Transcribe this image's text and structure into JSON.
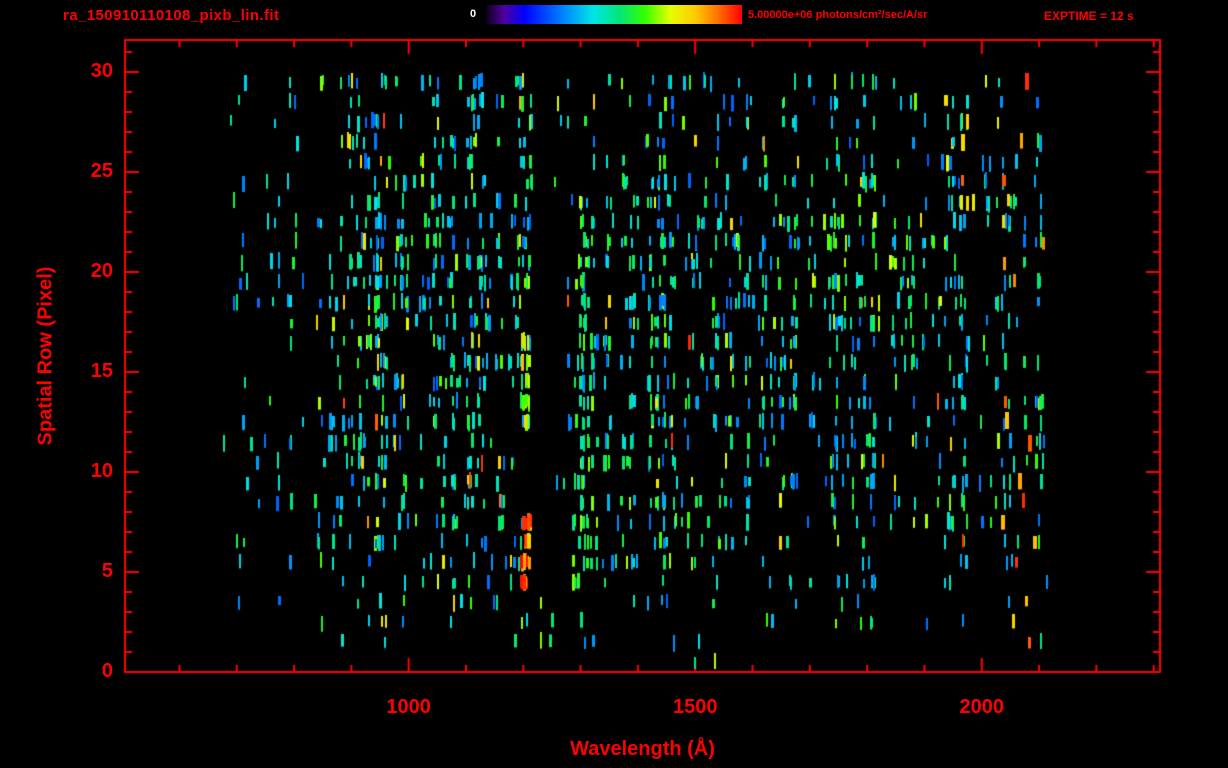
{
  "colors": {
    "background": "#000000",
    "axis": "#ff0000",
    "labels": "#ff0000",
    "colorbar_min_label": "#ffffff"
  },
  "chart_data": {
    "type": "heatmap",
    "title": "ra_150910110108_pixb_lin.fit",
    "xlabel": "Wavelength (Å)",
    "ylabel": "Spatial Row (Pixel)",
    "exptime_label": "EXPTIME = 12 s",
    "exptime_seconds": 12,
    "x_tick_labels": [
      "1000",
      "1500",
      "2000"
    ],
    "x_tick_values": [
      1000,
      1500,
      2000
    ],
    "x_minor_step": 100,
    "x_major_step": 500,
    "x_range": [
      505,
      2311
    ],
    "y_tick_labels": [
      "0",
      "5",
      "10",
      "15",
      "20",
      "25",
      "30"
    ],
    "y_tick_values": [
      0,
      5,
      10,
      15,
      20,
      25,
      30
    ],
    "y_minor_step": 1,
    "y_major_step": 5,
    "y_range": [
      0,
      31.6
    ],
    "grid": false,
    "colorbar": {
      "min": 0,
      "max": 5000000,
      "min_label": "0",
      "max_label": "5.00000e+06 photons/cm²/sec/A/sr",
      "units": "photons/cm²/sec/A/sr",
      "position": "top"
    },
    "colormap_stops": [
      [
        0.0,
        "#0a0014"
      ],
      [
        0.07,
        "#5000a0"
      ],
      [
        0.15,
        "#0000ff"
      ],
      [
        0.3,
        "#0082ff"
      ],
      [
        0.42,
        "#00e6e6"
      ],
      [
        0.52,
        "#00e67a"
      ],
      [
        0.62,
        "#32ff00"
      ],
      [
        0.72,
        "#e6ff00"
      ],
      [
        0.82,
        "#ffc800"
      ],
      [
        0.9,
        "#ff7800"
      ],
      [
        1.0,
        "#ff0000"
      ]
    ],
    "event_field": {
      "description": "photon-event dashes per spatial row; intensities 0-1 map through colormap to 0 - 5e6 photons/cm²/sec/A/sr",
      "seed": 20150910,
      "rows": 30,
      "wavelength_range": [
        675,
        2120
      ],
      "line_count": 150,
      "line_pick_prob": 0.78,
      "row_event_counts": [
        2,
        12,
        18,
        20,
        30,
        40,
        45,
        50,
        55,
        60,
        60,
        65,
        65,
        60,
        65,
        70,
        65,
        70,
        75,
        80,
        75,
        80,
        70,
        60,
        55,
        45,
        40,
        40,
        45,
        50
      ],
      "sparse_region_left_max_wavelength": 850,
      "sparse_region_left_keep_prob": 0.55,
      "sparse_region_right_min_wavelength": 2060,
      "sparse_region_right_keep_prob": 0.5,
      "features": [
        {
          "name": "lyman-alpha-emission-lower",
          "wavelength": [
            1196,
            1212
          ],
          "rows": [
            4,
            7
          ],
          "intensity": [
            0.78,
            1.0
          ],
          "extra_events_per_row": 7
        },
        {
          "name": "lyman-alpha-emission-upper",
          "wavelength": [
            1196,
            1212
          ],
          "rows": [
            12,
            16
          ],
          "intensity": [
            0.58,
            0.85
          ],
          "extra_events_per_row": 4
        },
        {
          "name": "geocoronal-gap-lower",
          "wavelength": [
            1190,
            1252
          ],
          "rows": [
            8,
            11
          ],
          "type": "exclusion"
        },
        {
          "name": "geocoronal-gap-upper",
          "wavelength": [
            1213,
            1252
          ],
          "rows": [
            12,
            23
          ],
          "type": "exclusion"
        },
        {
          "name": "oi-1304-column",
          "wavelength": [
            1288,
            1322
          ],
          "rows": [
            4,
            22
          ],
          "intensity": [
            0.45,
            0.68
          ],
          "extra_events_per_row": 3
        },
        {
          "name": "bright-patch-1800",
          "wavelength": [
            1720,
            1880
          ],
          "rows": [
            17,
            22
          ],
          "intensity": [
            0.5,
            0.75
          ],
          "extra_events_per_row": 5
        },
        {
          "name": "orange-events-1960",
          "wavelength": [
            1930,
            2005
          ],
          "rows": [
            23,
            28
          ],
          "intensity": [
            0.7,
            0.92
          ],
          "extra_events_per_row": 0.7
        },
        {
          "name": "red-events-2060",
          "wavelength": [
            2035,
            2100
          ],
          "rows": [
            0,
            29
          ],
          "intensity": [
            0.78,
            1.0
          ],
          "extra_events_per_row": 0.6
        }
      ]
    }
  }
}
